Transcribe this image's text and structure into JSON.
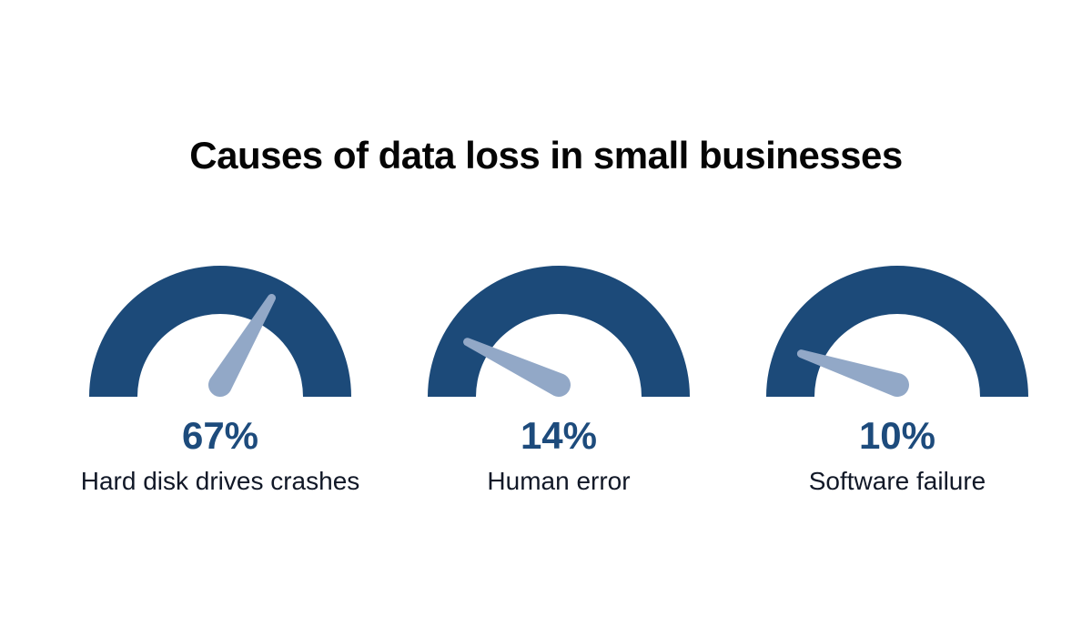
{
  "title": "Causes of data loss in small businesses",
  "chart_data": {
    "type": "gauge",
    "title": "Causes of data loss in small businesses",
    "unit": "%",
    "range": [
      0,
      100
    ],
    "start_angle_deg": 180,
    "end_angle_deg": 0,
    "legend": "none",
    "grid": false,
    "gauges": [
      {
        "value": 67,
        "display_value": "67%",
        "label": "Hard disk drives crashes"
      },
      {
        "value": 14,
        "display_value": "14%",
        "label": "Human error"
      },
      {
        "value": 10,
        "display_value": "10%",
        "label": "Software failure"
      }
    ],
    "colors": {
      "arc": "#1c4a79",
      "needle": "#92a8c7",
      "value_text": "#1d4b7c",
      "label_text": "#111827",
      "title_text": "#050505",
      "background": "#ffffff"
    }
  }
}
